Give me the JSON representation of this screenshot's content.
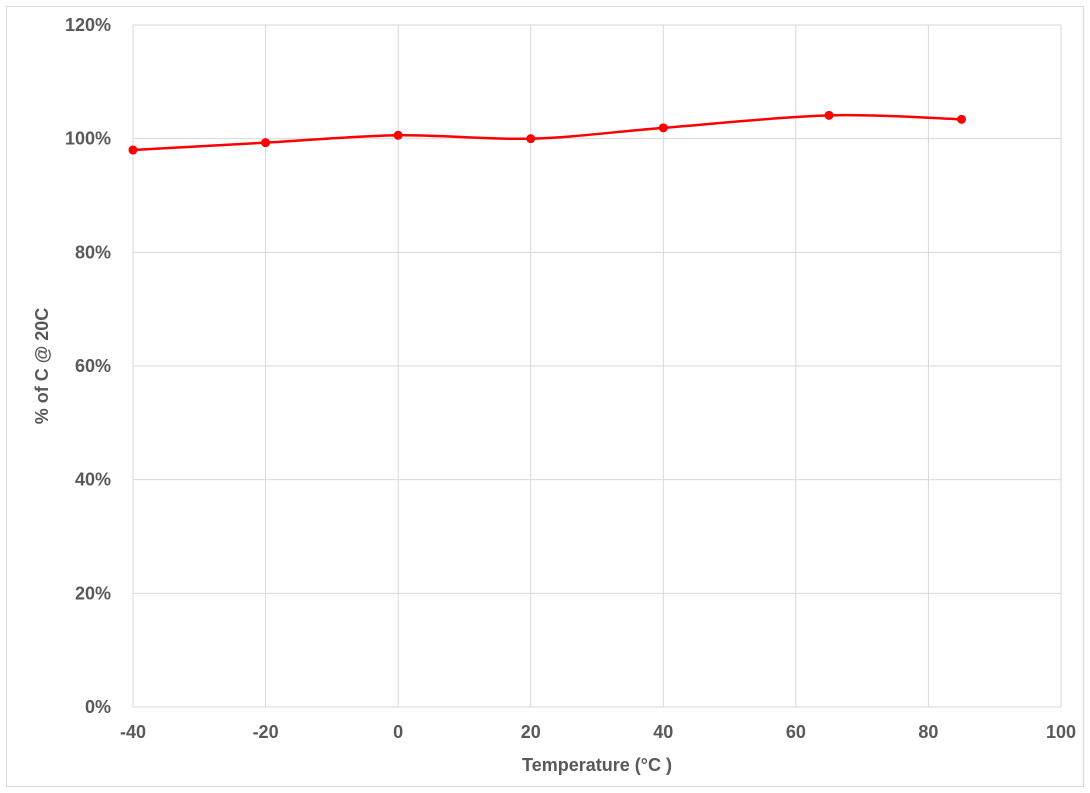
{
  "chart_data": {
    "type": "line",
    "title": "",
    "xlabel": "Temperature (°C )",
    "ylabel": "% of C @ 20C",
    "xlim": [
      -40,
      100
    ],
    "ylim": [
      0,
      120
    ],
    "x_ticks": [
      -40,
      -20,
      0,
      20,
      40,
      60,
      80,
      100
    ],
    "y_ticks": [
      0,
      20,
      40,
      60,
      80,
      100,
      120
    ],
    "x_tick_labels": [
      "-40",
      "-20",
      "0",
      "20",
      "40",
      "60",
      "80",
      "100"
    ],
    "y_tick_labels": [
      "0%",
      "20%",
      "40%",
      "60%",
      "80%",
      "100%",
      "120%"
    ],
    "grid": true,
    "smooth": true,
    "series": [
      {
        "color": "#ff0000",
        "x": [
          -40,
          -20,
          0,
          20,
          40,
          65,
          85
        ],
        "y": [
          98.0,
          99.3,
          100.6,
          100.0,
          101.9,
          104.1,
          103.4
        ]
      }
    ]
  }
}
